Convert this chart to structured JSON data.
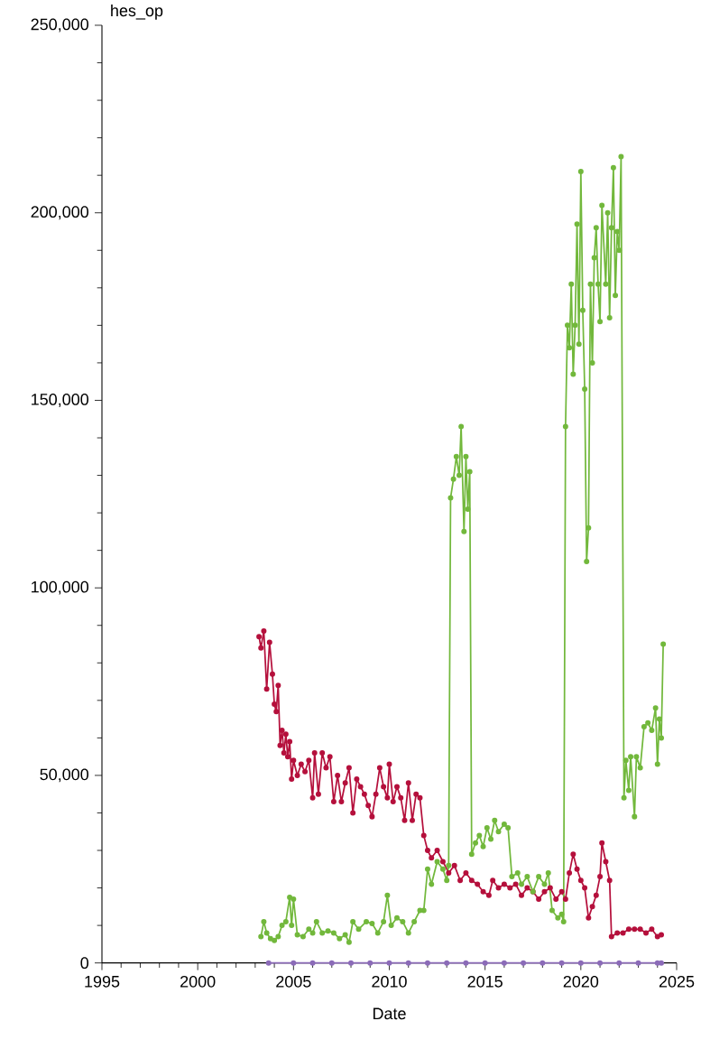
{
  "chart_data": {
    "type": "line",
    "xlabel": "Date",
    "ylabel": "hes_op",
    "marker": "circle",
    "line_style": "solid",
    "grid": false,
    "xlim": [
      1995,
      2025
    ],
    "ylim": [
      0,
      250000
    ],
    "xticks": [
      1995,
      2000,
      2005,
      2010,
      2015,
      2020,
      2025
    ],
    "yticks": [
      {
        "value": 0,
        "label": "0"
      },
      {
        "value": 50000,
        "label": "50,000"
      },
      {
        "value": 100000,
        "label": "100,000"
      },
      {
        "value": 150000,
        "label": "150,000"
      },
      {
        "value": 200000,
        "label": "200,000"
      },
      {
        "value": 250000,
        "label": "250,000"
      }
    ],
    "series": [
      {
        "color": "#b5103c",
        "x": [
          2003.2,
          2003.3,
          2003.45,
          2003.6,
          2003.75,
          2003.9,
          2004.0,
          2004.1,
          2004.2,
          2004.3,
          2004.4,
          2004.5,
          2004.6,
          2004.7,
          2004.8,
          2004.9,
          2005.0,
          2005.2,
          2005.4,
          2005.6,
          2005.8,
          2006.0,
          2006.1,
          2006.3,
          2006.5,
          2006.7,
          2006.9,
          2007.1,
          2007.3,
          2007.5,
          2007.7,
          2007.9,
          2008.1,
          2008.3,
          2008.5,
          2008.7,
          2008.9,
          2009.1,
          2009.3,
          2009.5,
          2009.7,
          2009.9,
          2010.0,
          2010.2,
          2010.4,
          2010.6,
          2010.8,
          2011.0,
          2011.2,
          2011.4,
          2011.6,
          2011.8,
          2012.0,
          2012.2,
          2012.5,
          2012.8,
          2013.1,
          2013.4,
          2013.7,
          2014.0,
          2014.3,
          2014.6,
          2014.9,
          2015.2,
          2015.4,
          2015.7,
          2016.0,
          2016.3,
          2016.6,
          2016.9,
          2017.2,
          2017.5,
          2017.8,
          2018.1,
          2018.4,
          2018.7,
          2019.0,
          2019.2,
          2019.4,
          2019.6,
          2019.8,
          2020.0,
          2020.2,
          2020.4,
          2020.6,
          2020.8,
          2021.0,
          2021.1,
          2021.3,
          2021.5,
          2021.6,
          2021.9,
          2022.2,
          2022.5,
          2022.8,
          2023.1,
          2023.4,
          2023.7,
          2024.0,
          2024.2
        ],
        "values": [
          87000,
          84000,
          88500,
          73000,
          85500,
          77000,
          69000,
          67000,
          74000,
          58000,
          62000,
          56000,
          61000,
          55000,
          59000,
          49000,
          54000,
          50000,
          53000,
          51000,
          54000,
          44000,
          56000,
          45000,
          56000,
          52000,
          55000,
          43000,
          50000,
          43000,
          48000,
          52000,
          40000,
          49000,
          47000,
          45000,
          42000,
          39000,
          45000,
          52000,
          47000,
          44000,
          53000,
          43000,
          47000,
          44000,
          38000,
          48000,
          38000,
          45000,
          44000,
          34000,
          30000,
          28000,
          30000,
          27000,
          24000,
          26000,
          22000,
          24000,
          22000,
          21000,
          19000,
          18000,
          22000,
          20000,
          21000,
          20000,
          21000,
          18000,
          20000,
          19000,
          17000,
          19000,
          20000,
          17000,
          19000,
          17000,
          24000,
          29000,
          25000,
          22000,
          20000,
          12000,
          15000,
          18000,
          23000,
          32000,
          27000,
          22000,
          7000,
          8000,
          8000,
          9000,
          9000,
          9000,
          8000,
          9000,
          7000,
          7500
        ]
      },
      {
        "color": "#72b83c",
        "x": [
          2003.3,
          2003.45,
          2003.6,
          2003.8,
          2004.0,
          2004.2,
          2004.4,
          2004.6,
          2004.8,
          2004.9,
          2005.0,
          2005.2,
          2005.5,
          2005.8,
          2006.0,
          2006.2,
          2006.5,
          2006.8,
          2007.1,
          2007.4,
          2007.7,
          2007.9,
          2008.1,
          2008.4,
          2008.8,
          2009.1,
          2009.4,
          2009.7,
          2009.9,
          2010.1,
          2010.4,
          2010.7,
          2011.0,
          2011.3,
          2011.6,
          2011.8,
          2012.0,
          2012.2,
          2012.5,
          2012.8,
          2013.0,
          2013.1,
          2013.2,
          2013.35,
          2013.5,
          2013.65,
          2013.75,
          2013.9,
          2014.0,
          2014.1,
          2014.2,
          2014.3,
          2014.5,
          2014.7,
          2014.9,
          2015.1,
          2015.3,
          2015.5,
          2015.7,
          2016.0,
          2016.2,
          2016.4,
          2016.7,
          2016.9,
          2017.2,
          2017.5,
          2017.8,
          2018.1,
          2018.3,
          2018.5,
          2018.8,
          2019.0,
          2019.1,
          2019.2,
          2019.3,
          2019.4,
          2019.5,
          2019.6,
          2019.7,
          2019.8,
          2019.9,
          2020.0,
          2020.1,
          2020.2,
          2020.3,
          2020.4,
          2020.5,
          2020.6,
          2020.7,
          2020.8,
          2020.9,
          2021.0,
          2021.1,
          2021.3,
          2021.4,
          2021.5,
          2021.6,
          2021.7,
          2021.8,
          2021.9,
          2022.0,
          2022.1,
          2022.25,
          2022.35,
          2022.5,
          2022.6,
          2022.8,
          2022.9,
          2023.1,
          2023.3,
          2023.5,
          2023.7,
          2023.9,
          2024.0,
          2024.1,
          2024.2,
          2024.3
        ],
        "values": [
          7000,
          11000,
          8000,
          6500,
          6000,
          7000,
          10000,
          11000,
          17500,
          10000,
          17000,
          7500,
          7000,
          9000,
          8000,
          11000,
          8000,
          8500,
          8000,
          6500,
          7500,
          5500,
          11000,
          9000,
          11000,
          10500,
          8000,
          11000,
          18000,
          10000,
          12000,
          11000,
          8000,
          11000,
          14000,
          14000,
          25000,
          21000,
          27000,
          25000,
          22000,
          26000,
          124000,
          129000,
          135000,
          130000,
          143000,
          115000,
          135000,
          121000,
          131000,
          29000,
          32000,
          34000,
          31000,
          36000,
          33000,
          38000,
          35000,
          37000,
          36000,
          23000,
          24000,
          21000,
          23000,
          19000,
          23000,
          21000,
          24000,
          14000,
          12000,
          13000,
          11000,
          143000,
          170000,
          164000,
          181000,
          157000,
          170000,
          197000,
          165000,
          211000,
          174000,
          153000,
          107000,
          116000,
          181000,
          160000,
          188000,
          196000,
          181000,
          171000,
          202000,
          181000,
          200000,
          172000,
          196000,
          212000,
          178000,
          195000,
          190000,
          215000,
          44000,
          54000,
          46000,
          55000,
          39000,
          55000,
          52000,
          63000,
          64000,
          62000,
          68000,
          53000,
          65000,
          60000,
          85000
        ]
      },
      {
        "color": "#8b6bb8",
        "x": [
          2003.7,
          2005.0,
          2006.0,
          2007.0,
          2008.0,
          2009.0,
          2010.0,
          2011.0,
          2012.0,
          2013.0,
          2014.0,
          2015.0,
          2016.0,
          2017.0,
          2018.0,
          2019.0,
          2020.0,
          2021.0,
          2022.0,
          2023.0,
          2024.0,
          2024.2
        ],
        "values": [
          0,
          0,
          0,
          0,
          0,
          0,
          0,
          0,
          0,
          0,
          0,
          0,
          0,
          0,
          0,
          0,
          0,
          0,
          0,
          0,
          0,
          0
        ]
      }
    ]
  }
}
